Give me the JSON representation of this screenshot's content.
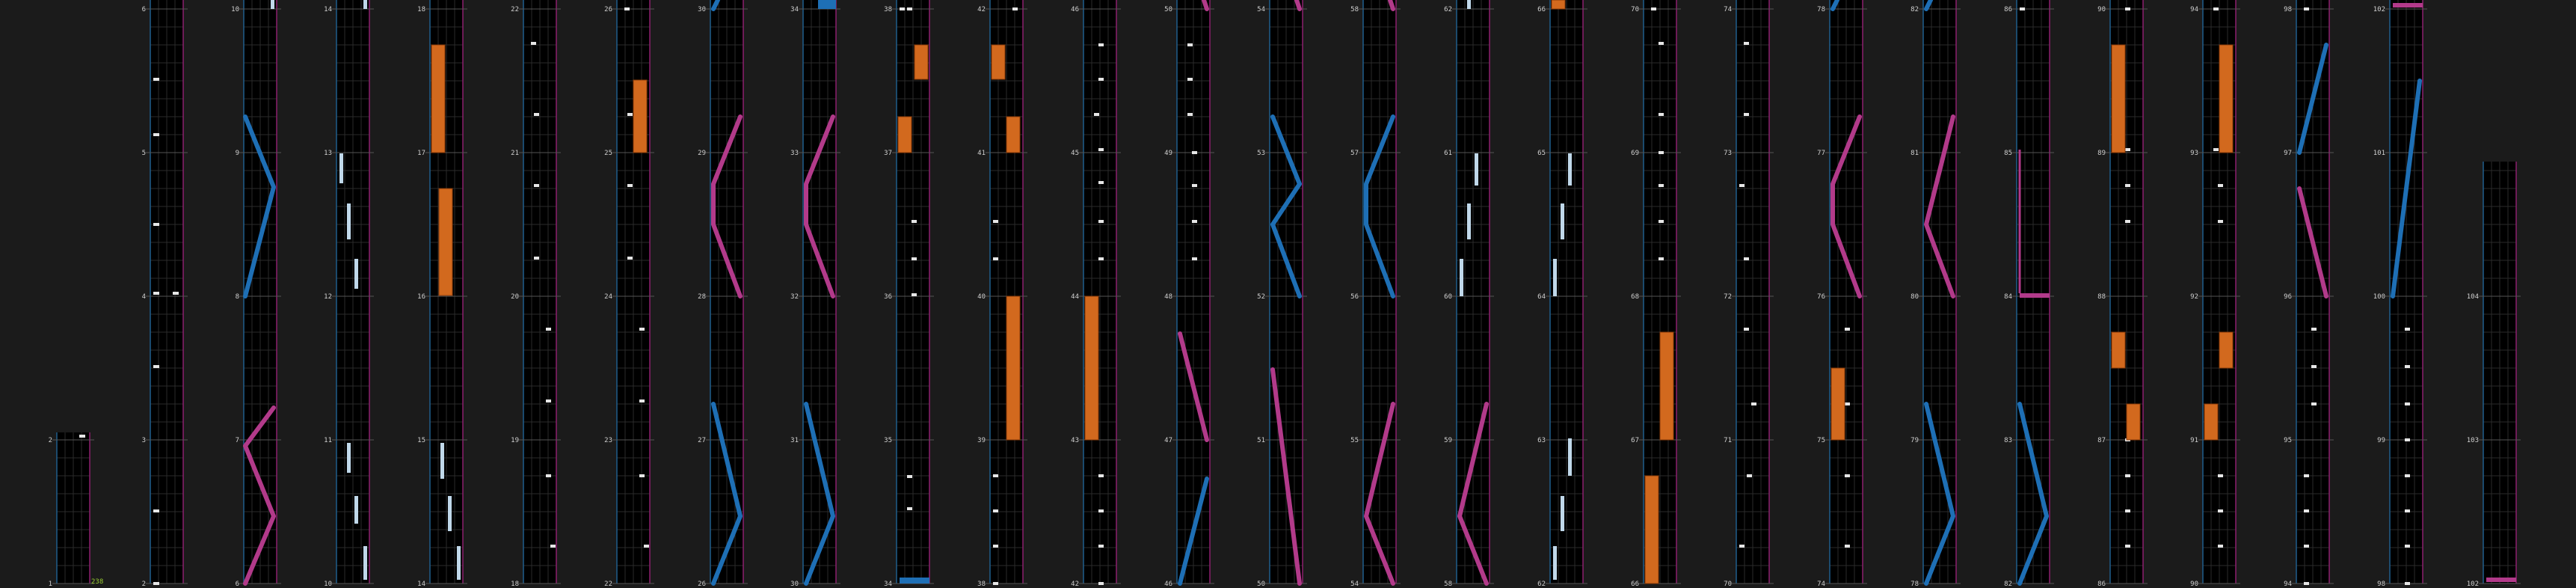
{
  "screen": {
    "background": "#1b1b1b",
    "colors": {
      "lane_bg": "#000000",
      "grid": "#2a2a2a",
      "left_border": "#1f5e8c",
      "right_border": "#8c1f6e",
      "measure_label": "#d0d0d0",
      "tap_note": "#e6e6e6",
      "long_note": "#c0d8ea",
      "blue_stream": "#1e6fb5",
      "pink_stream": "#b23a8a",
      "orange_hold": "#d2691e",
      "counter": "#9acd32"
    },
    "counter_value": "238"
  },
  "measures": [
    {
      "n": 1,
      "label": "1",
      "notes": []
    },
    {
      "n": 2,
      "label": "2",
      "notes": [
        {
          "t": "tap",
          "lane": 0,
          "pos": 0.95
        }
      ]
    },
    {
      "n": 2,
      "label": "2",
      "notes": [
        {
          "t": "tap",
          "lane": 0,
          "pos": 0.1
        },
        {
          "t": "tap",
          "lane": 0,
          "pos": 0.5
        }
      ]
    },
    {
      "n": 3,
      "label": "3",
      "notes": []
    },
    {
      "n": 4,
      "label": "4",
      "notes": [
        {
          "t": "tap",
          "lane": 1,
          "pos": 0.0
        },
        {
          "t": "tap",
          "lane": 0,
          "pos": 0.5
        }
      ]
    },
    {
      "n": 5,
      "label": "5",
      "notes": [
        {
          "t": "tap",
          "lane": 0,
          "pos": 0.1
        },
        {
          "t": "tap",
          "lane": 0,
          "pos": 0.5
        }
      ]
    },
    {
      "n": 6,
      "label": "6",
      "notes": [
        {
          "t": "tap",
          "lane": 0,
          "pos": 0.1
        },
        {
          "t": "tap",
          "lane": 0,
          "pos": 0.5
        }
      ]
    }
  ],
  "column_labels": {
    "col0": [
      "1",
      "2"
    ],
    "col1": [
      "2",
      "3",
      "4",
      "5",
      "6"
    ],
    "col2": [
      "6",
      "7",
      "8",
      "9",
      "10"
    ],
    "col3": [
      "10",
      "11",
      "12",
      "13",
      "14"
    ],
    "col4": [
      "14",
      "15",
      "16",
      "17",
      "18"
    ],
    "col5": [
      "18",
      "19",
      "20",
      "21",
      "22"
    ],
    "col6": [
      "22",
      "23",
      "24",
      "25",
      "26"
    ],
    "col7": [
      "26",
      "27",
      "28",
      "29",
      "30"
    ],
    "col8": [
      "30",
      "31",
      "32",
      "33",
      "34"
    ],
    "col9": [
      "34",
      "35",
      "36",
      "37",
      "38"
    ],
    "col10": [
      "38",
      "39",
      "40",
      "41",
      "42"
    ],
    "col11": [
      "42",
      "43",
      "44",
      "45",
      "46"
    ],
    "col12": [
      "46",
      "47",
      "48",
      "49",
      "50"
    ],
    "col13": [
      "50",
      "51",
      "52",
      "53",
      "54"
    ],
    "col14": [
      "54",
      "55",
      "56",
      "57",
      "58"
    ],
    "col15": [
      "58",
      "59",
      "60",
      "61",
      "62"
    ],
    "col16": [
      "62",
      "63",
      "64",
      "65",
      "66"
    ],
    "col17": [
      "66",
      "67",
      "68",
      "69",
      "70"
    ],
    "col18": [
      "70",
      "71",
      "72",
      "73",
      "74"
    ],
    "col19": [
      "74",
      "75",
      "76",
      "77",
      "78"
    ],
    "col20": [
      "78",
      "79",
      "80",
      "81",
      "82"
    ],
    "col21": [
      "82",
      "83",
      "84",
      "85",
      "86"
    ],
    "col22": [
      "86",
      "87",
      "88",
      "89",
      "90"
    ],
    "col23": [
      "90",
      "91",
      "92",
      "93",
      "94"
    ],
    "col24": [
      "94",
      "95",
      "96",
      "97",
      "98"
    ],
    "col25": [
      "98",
      "99",
      "100",
      "101",
      "102"
    ],
    "col26": [
      "102",
      "103",
      "104"
    ]
  }
}
